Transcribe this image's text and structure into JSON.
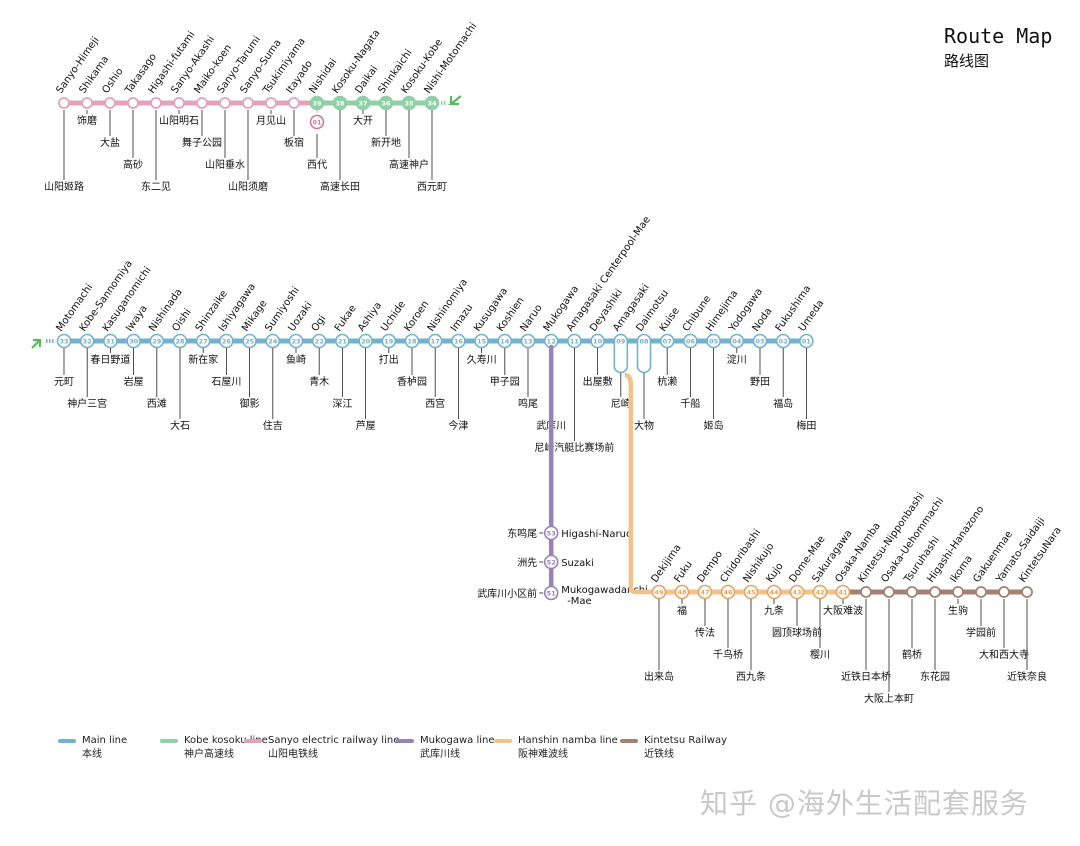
{
  "title": {
    "en": "Route Map",
    "zh": "路线图"
  },
  "watermark": "知乎 @海外生活配套服务",
  "colors": {
    "main": "#6fb3cf",
    "kobe": "#8fd0a6",
    "sanyo": "#e3a3b7",
    "mukogawa": "#9a82b8",
    "namba": "#f3c28a",
    "kintetsu": "#a48170",
    "arrow": "#5cb85c"
  },
  "legend": [
    {
      "en": "Main line",
      "zh": "本线",
      "color": "#6fb3cf"
    },
    {
      "en": "Kobe kosoku line",
      "zh": "神户高速线",
      "color": "#8fd0a6"
    },
    {
      "en": "Sanyo electric railway line",
      "zh": "山阳电铁线",
      "color": "#e3a3b7"
    },
    {
      "en": "Mukogawa line",
      "zh": "武库川线",
      "color": "#9a82b8"
    },
    {
      "en": "Hanshin namba line",
      "zh": "阪神难波线",
      "color": "#f3c28a"
    },
    {
      "en": "Kintetsu Railway",
      "zh": "近铁线",
      "color": "#a48170"
    }
  ],
  "sanyo_section": [
    {
      "en": "Sanyo-Himeji",
      "zh": "山阳姬路",
      "line": "sanyo",
      "num": ""
    },
    {
      "en": "Shikama",
      "zh": "饰磨",
      "line": "sanyo",
      "num": ""
    },
    {
      "en": "Oshio",
      "zh": "大盐",
      "line": "sanyo",
      "num": ""
    },
    {
      "en": "Takasago",
      "zh": "高砂",
      "line": "sanyo",
      "num": ""
    },
    {
      "en": "Higashi-futami",
      "zh": "东二见",
      "line": "sanyo",
      "num": ""
    },
    {
      "en": "Sanyo-Akashi",
      "zh": "山阳明石",
      "line": "sanyo",
      "num": ""
    },
    {
      "en": "Maiko-koen",
      "zh": "舞子公园",
      "line": "sanyo",
      "num": ""
    },
    {
      "en": "Sanyo-Tarumi",
      "zh": "山阳垂水",
      "line": "sanyo",
      "num": ""
    },
    {
      "en": "Sanyo-Suma",
      "zh": "山阳须磨",
      "line": "sanyo",
      "num": ""
    },
    {
      "en": "Tsukimiyama",
      "zh": "月见山",
      "line": "sanyo",
      "num": ""
    },
    {
      "en": "Itayado",
      "zh": "板宿",
      "line": "sanyo",
      "num": ""
    },
    {
      "en": "Nishidai",
      "zh": "西代",
      "line": "kobe",
      "num": "39"
    },
    {
      "en": "Kosoku-Nagata",
      "zh": "高速长田",
      "line": "kobe",
      "num": "38"
    },
    {
      "en": "Daikai",
      "zh": "大开",
      "line": "kobe",
      "num": "37"
    },
    {
      "en": "Shinkaichi",
      "zh": "新开地",
      "line": "kobe",
      "num": "36"
    },
    {
      "en": "Kosoku-Kobe",
      "zh": "高速神户",
      "line": "kobe",
      "num": "35"
    },
    {
      "en": "Nishi-Motomachi",
      "zh": "西元町",
      "line": "kobe",
      "num": "34"
    }
  ],
  "sanyo_extra_badge": "01",
  "main_line": [
    {
      "en": "Motomachi",
      "zh": "元町",
      "num": "33"
    },
    {
      "en": "Kobe-Sannomiya",
      "zh": "神户三宫",
      "num": "32"
    },
    {
      "en": "Kasuganomichi",
      "zh": "春日野道",
      "num": "31"
    },
    {
      "en": "Iwaya",
      "zh": "岩屋",
      "num": "30"
    },
    {
      "en": "Nishinada",
      "zh": "西滩",
      "num": "29"
    },
    {
      "en": "Oishi",
      "zh": "大石",
      "num": "28"
    },
    {
      "en": "Shinzaike",
      "zh": "新在家",
      "num": "27"
    },
    {
      "en": "Ishiyagawa",
      "zh": "石屋川",
      "num": "26"
    },
    {
      "en": "Mikage",
      "zh": "御影",
      "num": "25"
    },
    {
      "en": "Sumiyoshi",
      "zh": "住吉",
      "num": "24"
    },
    {
      "en": "Uozaki",
      "zh": "鱼崎",
      "num": "23"
    },
    {
      "en": "Ogi",
      "zh": "青木",
      "num": "22"
    },
    {
      "en": "Fukae",
      "zh": "深江",
      "num": "21"
    },
    {
      "en": "Ashiya",
      "zh": "芦屋",
      "num": "20"
    },
    {
      "en": "Uchide",
      "zh": "打出",
      "num": "19"
    },
    {
      "en": "Koroen",
      "zh": "香栌园",
      "num": "18"
    },
    {
      "en": "Nishinomiya",
      "zh": "西宫",
      "num": "17"
    },
    {
      "en": "Imazu",
      "zh": "今津",
      "num": "16"
    },
    {
      "en": "Kusugawa",
      "zh": "久寿川",
      "num": "15"
    },
    {
      "en": "Koshien",
      "zh": "甲子园",
      "num": "14"
    },
    {
      "en": "Naruo",
      "zh": "鸣尾",
      "num": "13"
    },
    {
      "en": "Mukogawa",
      "zh": "武库川",
      "num": "12"
    },
    {
      "en": "Amagasaki Centerpool-Mae",
      "zh": "尼崎汽艇比赛场前",
      "num": "11"
    },
    {
      "en": "Deyashiki",
      "zh": "出屋敷",
      "num": "10"
    },
    {
      "en": "Amagasaki",
      "zh": "尼崎",
      "num": "09"
    },
    {
      "en": "Daimotsu",
      "zh": "大物",
      "num": "08"
    },
    {
      "en": "Kuise",
      "zh": "杭濑",
      "num": "07"
    },
    {
      "en": "Chibune",
      "zh": "千船",
      "num": "06"
    },
    {
      "en": "Himejima",
      "zh": "姬岛",
      "num": "05"
    },
    {
      "en": "Yodogawa",
      "zh": "淀川",
      "num": "04"
    },
    {
      "en": "Noda",
      "zh": "野田",
      "num": "03"
    },
    {
      "en": "Fukushima",
      "zh": "福岛",
      "num": "02"
    },
    {
      "en": "Umeda",
      "zh": "梅田",
      "num": "01"
    }
  ],
  "mukogawa_line": [
    {
      "en": "Higashi-Naruo",
      "zh": "东鸣尾",
      "num": "53"
    },
    {
      "en": "Suzaki",
      "zh": "洲先",
      "num": "52"
    },
    {
      "en": "Mukogawadanchi-Mae",
      "zh": "武库川小区前",
      "num": "51"
    }
  ],
  "namba_line": [
    {
      "en": "Dekijima",
      "zh": "出来岛",
      "num": "49",
      "line": "namba"
    },
    {
      "en": "Fuku",
      "zh": "福",
      "num": "48",
      "line": "namba"
    },
    {
      "en": "Dempo",
      "zh": "传法",
      "num": "47",
      "line": "namba"
    },
    {
      "en": "Chidoribashi",
      "zh": "千鸟桥",
      "num": "46",
      "line": "namba"
    },
    {
      "en": "Nishikujo",
      "zh": "西九条",
      "num": "45",
      "line": "namba"
    },
    {
      "en": "Kujo",
      "zh": "九条",
      "num": "44",
      "line": "namba"
    },
    {
      "en": "Dome-Mae",
      "zh": "圆顶球场前",
      "num": "43",
      "line": "namba"
    },
    {
      "en": "Sakuragawa",
      "zh": "樱川",
      "num": "42",
      "line": "namba"
    },
    {
      "en": "Osaka-Namba",
      "zh": "大阪难波",
      "num": "41",
      "line": "namba"
    },
    {
      "en": "Kintetsu-Nipponbashi",
      "zh": "近铁日本桥",
      "num": "",
      "line": "kintetsu"
    },
    {
      "en": "Osaka-Uehommachi",
      "zh": "大阪上本町",
      "num": "",
      "line": "kintetsu"
    },
    {
      "en": "Tsuruhashi",
      "zh": "鹤桥",
      "num": "",
      "line": "kintetsu"
    },
    {
      "en": "Higashi-Hanazono",
      "zh": "东花园",
      "num": "",
      "line": "kintetsu"
    },
    {
      "en": "Ikoma",
      "zh": "生驹",
      "num": "",
      "line": "kintetsu"
    },
    {
      "en": "Gakuenmae",
      "zh": "学园前",
      "num": "",
      "line": "kintetsu"
    },
    {
      "en": "Yamato-Saidaiji",
      "zh": "大和西大寺",
      "num": "",
      "line": "kintetsu"
    },
    {
      "en": "KintetsuNara",
      "zh": "近铁奈良",
      "num": "",
      "line": "kintetsu"
    }
  ]
}
